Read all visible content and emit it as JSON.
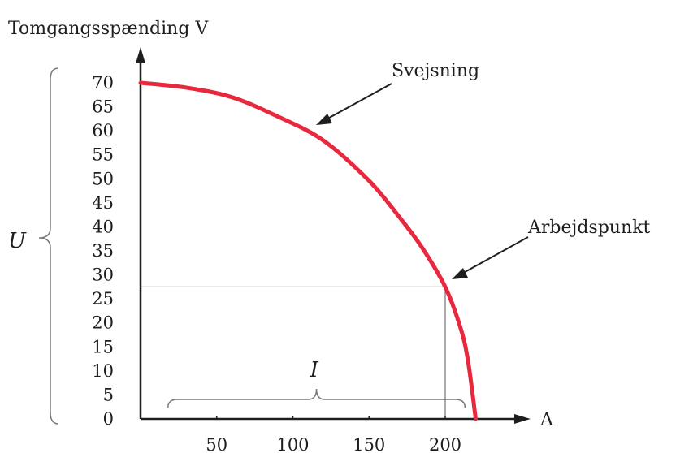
{
  "chart_data": {
    "type": "line",
    "ylabel": "Tomgangsspænding V",
    "xlabel": "A",
    "y_brace_label": "U",
    "x_brace_label": "I",
    "xlim": [
      0,
      225
    ],
    "ylim": [
      0,
      70
    ],
    "x_ticks": [
      50,
      100,
      150,
      200
    ],
    "y_ticks": [
      0,
      5,
      10,
      15,
      20,
      25,
      30,
      35,
      40,
      45,
      50,
      55,
      60,
      65,
      70
    ],
    "x_tick_labels": [
      "50",
      "100",
      "150",
      "200"
    ],
    "y_tick_labels": [
      "0",
      "5",
      "10",
      "15",
      "20",
      "25",
      "30",
      "35",
      "40",
      "45",
      "50",
      "55",
      "60",
      "65",
      "70"
    ],
    "series": [
      {
        "name": "Svejsning",
        "color": "#e8283e",
        "x": [
          0,
          30,
          60,
          90,
          120,
          150,
          170,
          185,
          200,
          210,
          215,
          220
        ],
        "y": [
          70,
          69,
          67,
          63,
          58,
          49.6,
          42,
          35.6,
          27.5,
          19,
          12,
          0
        ]
      }
    ],
    "annotations": [
      {
        "text": "Svejsning",
        "x": 118,
        "y": 60
      },
      {
        "text": "Arbejdspunkt",
        "x": 200,
        "y": 27.5
      }
    ],
    "working_point": {
      "x": 200,
      "y": 27.5
    },
    "brace_x_range": [
      18,
      213
    ],
    "colors": {
      "curve": "#e8283e",
      "axis": "#1e1e1e",
      "guide": "#555555"
    }
  }
}
